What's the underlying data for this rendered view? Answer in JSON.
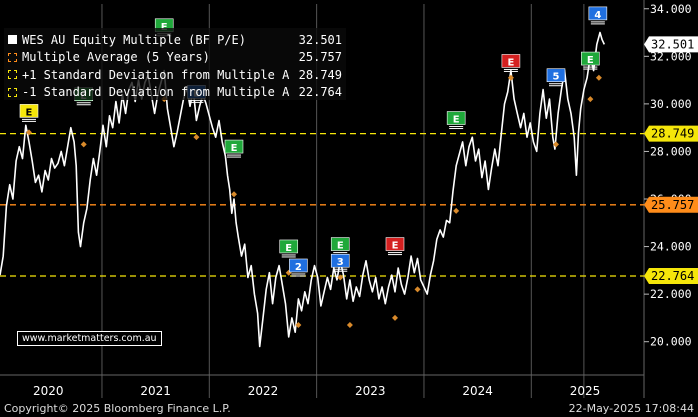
{
  "legend": [
    {
      "label": "WES AU Equity Multiple (BF P/E)",
      "value": "32.501",
      "swatch": "#ffffff",
      "style": "solid"
    },
    {
      "label": "Multiple Average (5 Years)",
      "value": "25.757",
      "swatch": "#ff8c1a",
      "style": "dashed"
    },
    {
      "label": "+1 Standard Deviation from Multiple Average",
      "value": "28.749",
      "swatch": "#f5e60a",
      "style": "dashed"
    },
    {
      "label": "-1 Standard Deviation from Multiple Average",
      "value": "22.764",
      "swatch": "#f5e60a",
      "style": "dashed"
    }
  ],
  "watermark": "www.marketmatters.com.au",
  "footer": {
    "copyright": "Copyright© 2025 Bloomberg Finance L.P.",
    "timestamp": "22-May-2025 17:08:44"
  },
  "colors": {
    "series": "#ffffff",
    "average": "#ff8c1a",
    "sd": "#f5e60a",
    "earnings": "#1fa83a",
    "earnings_red": "#d42020",
    "event_blue": "#1f6fe0",
    "axis_text": "#ffffff",
    "price_tag_avg": "#ff8c1a",
    "price_tag_sd": "#f5e60a",
    "price_tag_last": "#ffffff"
  },
  "chart_data": {
    "type": "line",
    "y_axis": {
      "position": "right",
      "range": [
        18.6,
        34.2
      ],
      "ticks": [
        20,
        22,
        24,
        26,
        28,
        30,
        32,
        34
      ],
      "tick_labels": [
        "20.000",
        "22.000",
        "24.000",
        "26.000",
        "28.000",
        "30.000",
        "32.000",
        "34.000"
      ]
    },
    "x_axis": {
      "range": [
        2019.55,
        2025.55
      ],
      "year_labels": [
        "2020",
        "2021",
        "2022",
        "2023",
        "2024",
        "2025"
      ],
      "year_label_positions": [
        2020.0,
        2021.0,
        2022.0,
        2023.0,
        2024.0,
        2025.0
      ],
      "dividers": [
        2020.5,
        2021.5,
        2022.5,
        2023.5,
        2024.5,
        2024.99
      ]
    },
    "series": [
      {
        "name": "WES AU Equity Multiple (BF P/E)",
        "points": [
          [
            2019.55,
            22.8
          ],
          [
            2019.58,
            23.6
          ],
          [
            2019.61,
            25.7
          ],
          [
            2019.64,
            26.6
          ],
          [
            2019.67,
            26.0
          ],
          [
            2019.7,
            27.6
          ],
          [
            2019.73,
            28.2
          ],
          [
            2019.76,
            27.7
          ],
          [
            2019.79,
            29.1
          ],
          [
            2019.82,
            28.4
          ],
          [
            2019.85,
            27.6
          ],
          [
            2019.88,
            26.7
          ],
          [
            2019.91,
            27.0
          ],
          [
            2019.94,
            26.3
          ],
          [
            2019.97,
            27.2
          ],
          [
            2020.0,
            26.8
          ],
          [
            2020.03,
            27.7
          ],
          [
            2020.06,
            27.3
          ],
          [
            2020.09,
            27.5
          ],
          [
            2020.12,
            28.0
          ],
          [
            2020.15,
            27.4
          ],
          [
            2020.18,
            28.2
          ],
          [
            2020.21,
            29.0
          ],
          [
            2020.24,
            28.4
          ],
          [
            2020.26,
            27.4
          ],
          [
            2020.28,
            24.6
          ],
          [
            2020.3,
            24.0
          ],
          [
            2020.33,
            25.0
          ],
          [
            2020.36,
            25.6
          ],
          [
            2020.39,
            26.8
          ],
          [
            2020.42,
            27.7
          ],
          [
            2020.45,
            27.0
          ],
          [
            2020.48,
            28.0
          ],
          [
            2020.51,
            29.1
          ],
          [
            2020.54,
            28.2
          ],
          [
            2020.57,
            29.5
          ],
          [
            2020.6,
            29.0
          ],
          [
            2020.63,
            30.1
          ],
          [
            2020.66,
            29.2
          ],
          [
            2020.69,
            30.4
          ],
          [
            2020.72,
            29.6
          ],
          [
            2020.75,
            30.6
          ],
          [
            2020.78,
            30.9
          ],
          [
            2020.81,
            30.1
          ],
          [
            2020.84,
            31.0
          ],
          [
            2020.87,
            30.2
          ],
          [
            2020.9,
            30.9
          ],
          [
            2020.93,
            31.2
          ],
          [
            2020.96,
            30.4
          ],
          [
            2020.99,
            29.6
          ],
          [
            2021.02,
            30.4
          ],
          [
            2021.05,
            30.9
          ],
          [
            2021.08,
            31.4
          ],
          [
            2021.11,
            29.8
          ],
          [
            2021.14,
            29.0
          ],
          [
            2021.17,
            28.2
          ],
          [
            2021.2,
            28.8
          ],
          [
            2021.23,
            29.5
          ],
          [
            2021.26,
            30.2
          ],
          [
            2021.29,
            30.7
          ],
          [
            2021.32,
            29.9
          ],
          [
            2021.35,
            30.6
          ],
          [
            2021.38,
            29.3
          ],
          [
            2021.41,
            29.9
          ],
          [
            2021.44,
            30.4
          ],
          [
            2021.47,
            30.0
          ],
          [
            2021.5,
            29.5
          ],
          [
            2021.53,
            29.0
          ],
          [
            2021.56,
            28.6
          ],
          [
            2021.59,
            29.3
          ],
          [
            2021.62,
            28.4
          ],
          [
            2021.65,
            27.8
          ],
          [
            2021.67,
            27.0
          ],
          [
            2021.69,
            26.4
          ],
          [
            2021.71,
            25.4
          ],
          [
            2021.73,
            26.0
          ],
          [
            2021.75,
            25.0
          ],
          [
            2021.77,
            24.4
          ],
          [
            2021.8,
            23.6
          ],
          [
            2021.83,
            24.1
          ],
          [
            2021.86,
            22.7
          ],
          [
            2021.89,
            23.2
          ],
          [
            2021.92,
            22.0
          ],
          [
            2021.95,
            21.2
          ],
          [
            2021.97,
            19.8
          ],
          [
            2022.0,
            21.0
          ],
          [
            2022.03,
            22.2
          ],
          [
            2022.06,
            22.9
          ],
          [
            2022.09,
            21.6
          ],
          [
            2022.12,
            22.7
          ],
          [
            2022.15,
            23.2
          ],
          [
            2022.18,
            22.4
          ],
          [
            2022.21,
            21.6
          ],
          [
            2022.24,
            20.2
          ],
          [
            2022.27,
            21.0
          ],
          [
            2022.3,
            20.4
          ],
          [
            2022.33,
            21.8
          ],
          [
            2022.36,
            21.3
          ],
          [
            2022.39,
            22.1
          ],
          [
            2022.42,
            21.6
          ],
          [
            2022.45,
            22.6
          ],
          [
            2022.48,
            23.2
          ],
          [
            2022.51,
            22.7
          ],
          [
            2022.54,
            21.5
          ],
          [
            2022.57,
            22.1
          ],
          [
            2022.6,
            22.7
          ],
          [
            2022.63,
            22.2
          ],
          [
            2022.66,
            23.1
          ],
          [
            2022.69,
            22.6
          ],
          [
            2022.72,
            23.4
          ],
          [
            2022.75,
            22.8
          ],
          [
            2022.78,
            21.8
          ],
          [
            2022.81,
            22.6
          ],
          [
            2022.84,
            21.7
          ],
          [
            2022.87,
            22.3
          ],
          [
            2022.9,
            21.9
          ],
          [
            2022.93,
            22.8
          ],
          [
            2022.96,
            23.4
          ],
          [
            2022.99,
            22.6
          ],
          [
            2023.02,
            22.1
          ],
          [
            2023.05,
            22.7
          ],
          [
            2023.08,
            21.8
          ],
          [
            2023.11,
            22.3
          ],
          [
            2023.14,
            21.6
          ],
          [
            2023.17,
            22.3
          ],
          [
            2023.2,
            22.8
          ],
          [
            2023.23,
            22.1
          ],
          [
            2023.26,
            23.1
          ],
          [
            2023.29,
            22.4
          ],
          [
            2023.32,
            22.0
          ],
          [
            2023.35,
            22.7
          ],
          [
            2023.38,
            23.6
          ],
          [
            2023.41,
            22.9
          ],
          [
            2023.44,
            23.5
          ],
          [
            2023.47,
            22.6
          ],
          [
            2023.5,
            22.3
          ],
          [
            2023.53,
            22.0
          ],
          [
            2023.56,
            22.8
          ],
          [
            2023.59,
            23.4
          ],
          [
            2023.62,
            24.3
          ],
          [
            2023.65,
            24.7
          ],
          [
            2023.68,
            24.4
          ],
          [
            2023.71,
            25.1
          ],
          [
            2023.74,
            25.0
          ],
          [
            2023.77,
            26.3
          ],
          [
            2023.8,
            27.4
          ],
          [
            2023.83,
            27.9
          ],
          [
            2023.86,
            28.4
          ],
          [
            2023.89,
            27.4
          ],
          [
            2023.92,
            28.2
          ],
          [
            2023.95,
            28.6
          ],
          [
            2023.98,
            27.6
          ],
          [
            2024.01,
            28.1
          ],
          [
            2024.04,
            26.9
          ],
          [
            2024.07,
            27.6
          ],
          [
            2024.1,
            26.4
          ],
          [
            2024.13,
            27.3
          ],
          [
            2024.16,
            28.1
          ],
          [
            2024.19,
            27.4
          ],
          [
            2024.22,
            28.7
          ],
          [
            2024.25,
            30.0
          ],
          [
            2024.28,
            30.5
          ],
          [
            2024.31,
            31.4
          ],
          [
            2024.34,
            30.2
          ],
          [
            2024.37,
            29.6
          ],
          [
            2024.4,
            29.0
          ],
          [
            2024.43,
            29.6
          ],
          [
            2024.46,
            28.6
          ],
          [
            2024.49,
            29.2
          ],
          [
            2024.52,
            28.4
          ],
          [
            2024.55,
            28.0
          ],
          [
            2024.58,
            29.6
          ],
          [
            2024.61,
            30.6
          ],
          [
            2024.64,
            29.4
          ],
          [
            2024.67,
            30.2
          ],
          [
            2024.7,
            28.6
          ],
          [
            2024.72,
            28.1
          ],
          [
            2024.75,
            29.6
          ],
          [
            2024.78,
            30.6
          ],
          [
            2024.81,
            31.4
          ],
          [
            2024.84,
            30.2
          ],
          [
            2024.87,
            29.6
          ],
          [
            2024.9,
            28.6
          ],
          [
            2024.92,
            27.0
          ],
          [
            2024.94,
            28.8
          ],
          [
            2024.96,
            29.8
          ],
          [
            2024.99,
            30.6
          ],
          [
            2025.02,
            31.1
          ],
          [
            2025.05,
            32.0
          ],
          [
            2025.08,
            31.4
          ],
          [
            2025.11,
            32.5
          ],
          [
            2025.14,
            33.0
          ],
          [
            2025.16,
            32.7
          ],
          [
            2025.18,
            32.501
          ]
        ]
      }
    ],
    "reference_lines": [
      {
        "name": "Multiple Average (5 Years)",
        "value": 25.757,
        "label": "25.757"
      },
      {
        "name": "+1 Standard Deviation from Multiple Average",
        "value": 28.749,
        "label": "28.749"
      },
      {
        "name": "-1 Standard Deviation from Multiple Average",
        "value": 22.764,
        "label": "22.764"
      }
    ],
    "last_value_label": "32.501",
    "markers": [
      {
        "x": 2019.82,
        "y": 28.8,
        "type": "diamond"
      },
      {
        "x": 2020.33,
        "y": 28.3,
        "type": "diamond"
      },
      {
        "x": 2021.08,
        "y": 30.2,
        "type": "diamond"
      },
      {
        "x": 2021.38,
        "y": 28.6,
        "type": "diamond"
      },
      {
        "x": 2021.73,
        "y": 26.2,
        "type": "diamond"
      },
      {
        "x": 2022.24,
        "y": 22.9,
        "type": "diamond"
      },
      {
        "x": 2022.33,
        "y": 20.7,
        "type": "diamond"
      },
      {
        "x": 2022.72,
        "y": 22.7,
        "type": "diamond"
      },
      {
        "x": 2022.81,
        "y": 20.7,
        "type": "diamond"
      },
      {
        "x": 2023.23,
        "y": 21.0,
        "type": "diamond"
      },
      {
        "x": 2023.44,
        "y": 22.2,
        "type": "diamond"
      },
      {
        "x": 2023.8,
        "y": 25.5,
        "type": "diamond"
      },
      {
        "x": 2024.31,
        "y": 31.1,
        "type": "diamond"
      },
      {
        "x": 2024.73,
        "y": 28.3,
        "type": "diamond"
      },
      {
        "x": 2025.05,
        "y": 30.2,
        "type": "diamond"
      },
      {
        "x": 2025.13,
        "y": 31.1,
        "type": "diamond"
      }
    ],
    "events": [
      {
        "x": 2019.82,
        "y": 29.6,
        "label": "E",
        "color": "yellow"
      },
      {
        "x": 2020.33,
        "y": 30.3,
        "label": "E",
        "color": "green"
      },
      {
        "x": 2021.08,
        "y": 33.2,
        "label": "E",
        "color": "green"
      },
      {
        "x": 2021.38,
        "y": 30.4,
        "label": "E",
        "color": "blue"
      },
      {
        "x": 2021.73,
        "y": 28.1,
        "label": "E",
        "color": "green"
      },
      {
        "x": 2022.24,
        "y": 23.9,
        "label": "E",
        "color": "green"
      },
      {
        "x": 2022.33,
        "y": 23.1,
        "label": "2",
        "color": "blue"
      },
      {
        "x": 2022.72,
        "y": 24.0,
        "label": "E",
        "color": "green"
      },
      {
        "x": 2022.72,
        "y": 23.3,
        "label": "3",
        "color": "blue"
      },
      {
        "x": 2023.23,
        "y": 24.0,
        "label": "E",
        "color": "red"
      },
      {
        "x": 2023.8,
        "y": 29.3,
        "label": "E",
        "color": "green"
      },
      {
        "x": 2024.31,
        "y": 31.7,
        "label": "E",
        "color": "red"
      },
      {
        "x": 2024.73,
        "y": 31.1,
        "label": "5",
        "color": "blue"
      },
      {
        "x": 2025.05,
        "y": 31.8,
        "label": "E",
        "color": "green"
      },
      {
        "x": 2025.12,
        "y": 33.7,
        "label": "4",
        "color": "blue"
      }
    ]
  }
}
